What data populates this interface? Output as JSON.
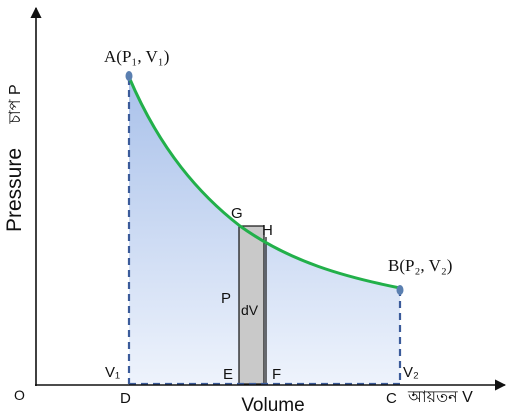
{
  "labels": {
    "y_axis": "Pressure",
    "y_axis_bengali": "চাপ P",
    "x_axis": "Volume",
    "x_axis_bengali": "আয়তন V",
    "origin": "O",
    "point_a": "A(P₁, V₁)",
    "point_b": "B(P₂, V₂)",
    "point_g": "G",
    "point_h": "H",
    "point_p": "P",
    "strip_dv": "dV",
    "point_e": "E",
    "point_f": "F",
    "point_d": "D",
    "point_c": "C",
    "v1": "V₁",
    "v2": "V₂"
  },
  "colors": {
    "curve": "#22b04a",
    "dashed": "#3b5b9a",
    "fill_top": "#a9c1ea",
    "fill_bottom": "#eef3fc",
    "strip": "#c9c9c9",
    "point": "#5a7fb0",
    "axis": "#111111"
  }
}
